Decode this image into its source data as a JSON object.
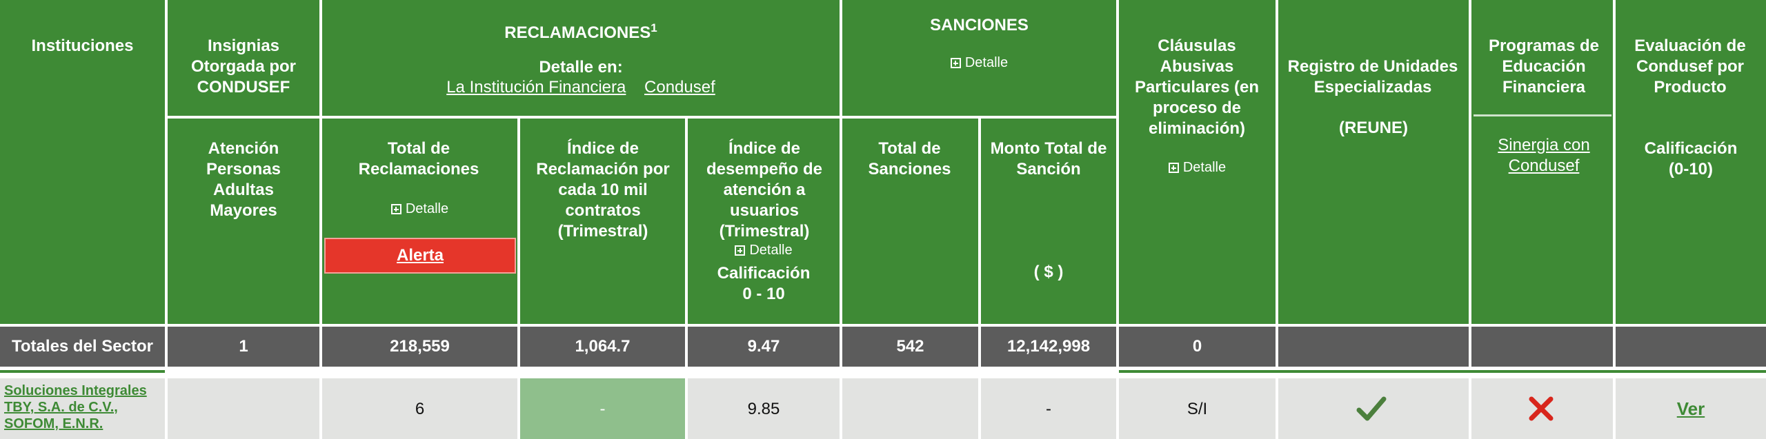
{
  "header": {
    "instituciones": "Instituciones",
    "insignias": "Insignias Otorgada por CONDUSEF",
    "reclamaciones": "RECLAMACIONES",
    "reclamaciones_sup": "1",
    "detalle_en": "Detalle en:",
    "link_institucion": "La Institución Financiera",
    "link_condusef": "Condusef",
    "sanciones": "SANCIONES",
    "detalle": "Detalle",
    "clausulas": "Cláusulas Abusivas Particulares (en proceso de eliminación)",
    "reune": "Registro de Unidades Especializadas",
    "reune_abbr": "(REUNE)",
    "programas": "Programas de Educación Financiera",
    "sinergia": "Sinergia con Condusef",
    "evaluacion": "Evaluación de Condusef por Producto",
    "atencion": "Atención Personas Adultas Mayores",
    "total_reclamaciones": "Total de Reclamaciones",
    "alerta": "Alerta",
    "indice_reclamacion": "Índice de Reclamación por cada 10 mil contratos (Trimestral)",
    "indice_desempeno": "Índice de desempeño de atención a usuarios (Trimestral)",
    "calificacion_0_10_a": "Calificación",
    "calificacion_0_10_b": "0 - 10",
    "total_sanciones": "Total de Sanciones",
    "monto_total": "Monto Total de Sanción",
    "monto_unit": "( $ )",
    "calificacion_b_a": "Calificación",
    "calificacion_b_b": "(0-10)"
  },
  "totals": {
    "label": "Totales del Sector",
    "insignias": "1",
    "total_reclamaciones": "218,559",
    "indice_reclamacion": "1,064.7",
    "indice_desempeno": "9.47",
    "total_sanciones": "542",
    "monto": "12,142,998",
    "clausulas": "0"
  },
  "row": {
    "institucion": "Soluciones Integrales TBY, S.A. de C.V., SOFOM, E.N.R.",
    "total_reclamaciones": "6",
    "indice_reclamacion": "-",
    "indice_desempeno": "9.85",
    "monto": "-",
    "clausulas": "S/I",
    "reune_icon": "check-icon",
    "programas_icon": "cross-icon",
    "evaluacion_link": "Ver"
  },
  "colors": {
    "header_green": "#3e8a35",
    "totals_gray": "#5c5c5c",
    "row_gray": "#e2e3e1",
    "alert_red": "#e5362a",
    "check_green": "#4b7f3c",
    "cross_red": "#d8261c"
  }
}
